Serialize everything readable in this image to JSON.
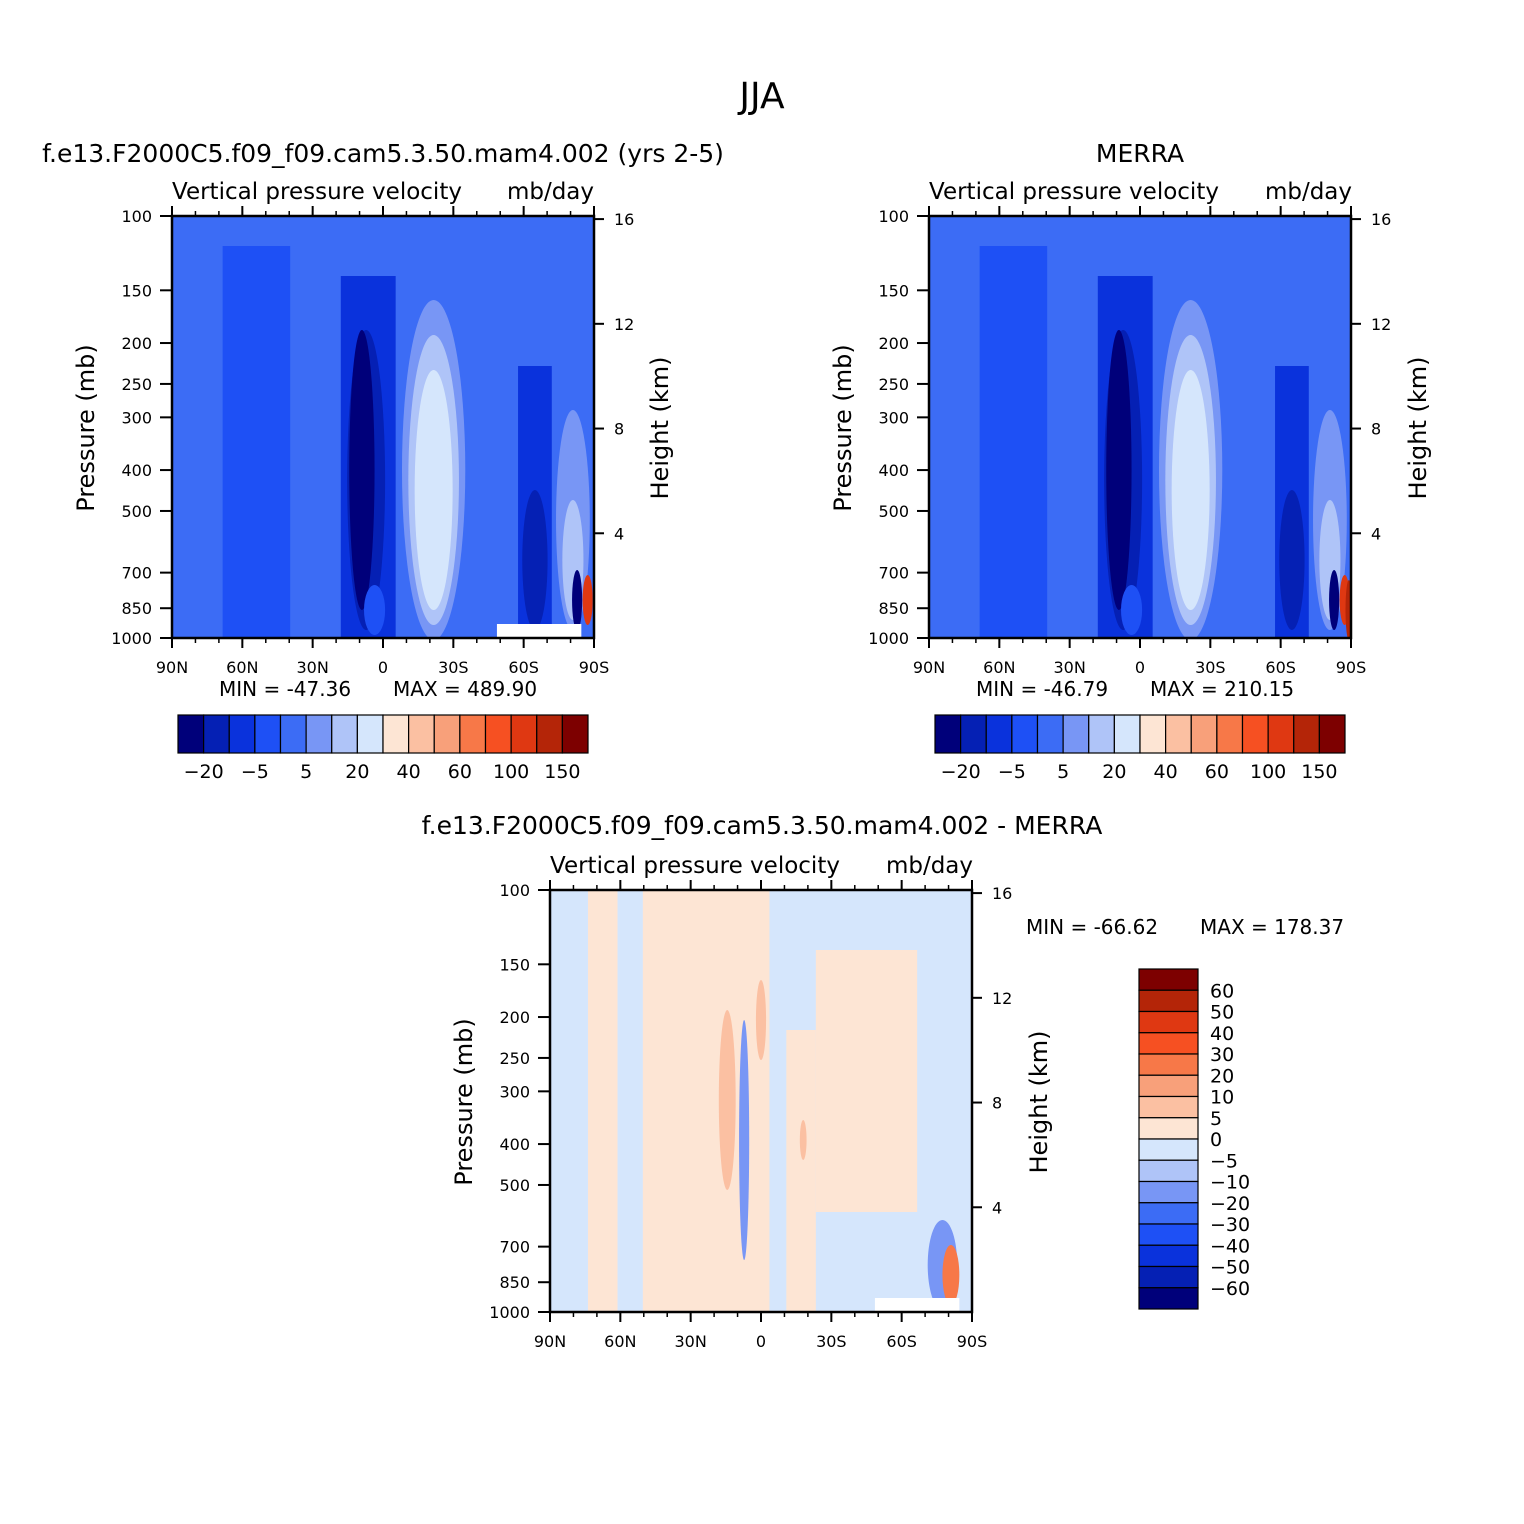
{
  "figure": {
    "title": "JJA"
  },
  "colors": {
    "main_scale": [
      "#00007a",
      "#0520b4",
      "#0a32dc",
      "#1e50f5",
      "#3c6cf5",
      "#7896f5",
      "#afc4f8",
      "#d5e6fc",
      "#fde5d4",
      "#fbc0a2",
      "#f8a07a",
      "#f77848",
      "#f65022",
      "#df3812",
      "#b42508",
      "#7d0000"
    ],
    "diff_scale": [
      "#00007a",
      "#0520b4",
      "#0a32dc",
      "#1e50f5",
      "#3c6cf5",
      "#7896f5",
      "#afc4f8",
      "#d5e6fc",
      "#fde5d4",
      "#fbc0a2",
      "#f8a07a",
      "#f77848",
      "#f65022",
      "#df3812",
      "#b42508",
      "#7d0000"
    ]
  },
  "chart_data": [
    {
      "type": "heatmap",
      "panel": "model",
      "title": "f.e13.F2000C5.f09_f09.cam5.3.50.mam4.002 (yrs 2-5)",
      "left_label": "Vertical pressure velocity",
      "right_label": "mb/day",
      "xlabel": "",
      "ylabel": "Pressure (mb)",
      "y2label": "Height (km)",
      "x_ticks": [
        "90N",
        "60N",
        "30N",
        "0",
        "30S",
        "60S",
        "90S"
      ],
      "y_ticks": [
        "100",
        "150",
        "200",
        "250",
        "300",
        "400",
        "500",
        "700",
        "850",
        "1000"
      ],
      "y2_ticks": [
        "16",
        "12",
        "8",
        "4"
      ],
      "min_text": "MIN = -47.36",
      "max_text": "MAX = 489.90",
      "min": -47.36,
      "max": 489.9,
      "colorbar_labels": [
        "-20",
        "-5",
        "5",
        "20",
        "40",
        "60",
        "100",
        "150"
      ]
    },
    {
      "type": "heatmap",
      "panel": "obs",
      "title": "MERRA",
      "left_label": "Vertical pressure velocity",
      "right_label": "mb/day",
      "xlabel": "",
      "ylabel": "Pressure (mb)",
      "y2label": "Height (km)",
      "x_ticks": [
        "90N",
        "60N",
        "30N",
        "0",
        "30S",
        "60S",
        "90S"
      ],
      "y_ticks": [
        "100",
        "150",
        "200",
        "250",
        "300",
        "400",
        "500",
        "700",
        "850",
        "1000"
      ],
      "y2_ticks": [
        "16",
        "12",
        "8",
        "4"
      ],
      "min_text": "MIN = -46.79",
      "max_text": "MAX = 210.15",
      "min": -46.79,
      "max": 210.15,
      "colorbar_labels": [
        "-20",
        "-5",
        "5",
        "20",
        "40",
        "60",
        "100",
        "150"
      ]
    },
    {
      "type": "heatmap",
      "panel": "diff",
      "title": "f.e13.F2000C5.f09_f09.cam5.3.50.mam4.002 - MERRA",
      "left_label": "Vertical pressure velocity",
      "right_label": "mb/day",
      "xlabel": "",
      "ylabel": "Pressure (mb)",
      "y2label": "Height (km)",
      "x_ticks": [
        "90N",
        "60N",
        "30N",
        "0",
        "30S",
        "60S",
        "90S"
      ],
      "y_ticks": [
        "100",
        "150",
        "200",
        "250",
        "300",
        "400",
        "500",
        "700",
        "850",
        "1000"
      ],
      "y2_ticks": [
        "16",
        "12",
        "8",
        "4"
      ],
      "min_text": "MIN = -66.62",
      "max_text": "MAX = 178.37",
      "min": -66.62,
      "max": 178.37,
      "colorbar_labels": [
        "60",
        "50",
        "40",
        "30",
        "20",
        "10",
        "5",
        "0",
        "-5",
        "-10",
        "-20",
        "-30",
        "-40",
        "-50",
        "-60"
      ]
    }
  ]
}
